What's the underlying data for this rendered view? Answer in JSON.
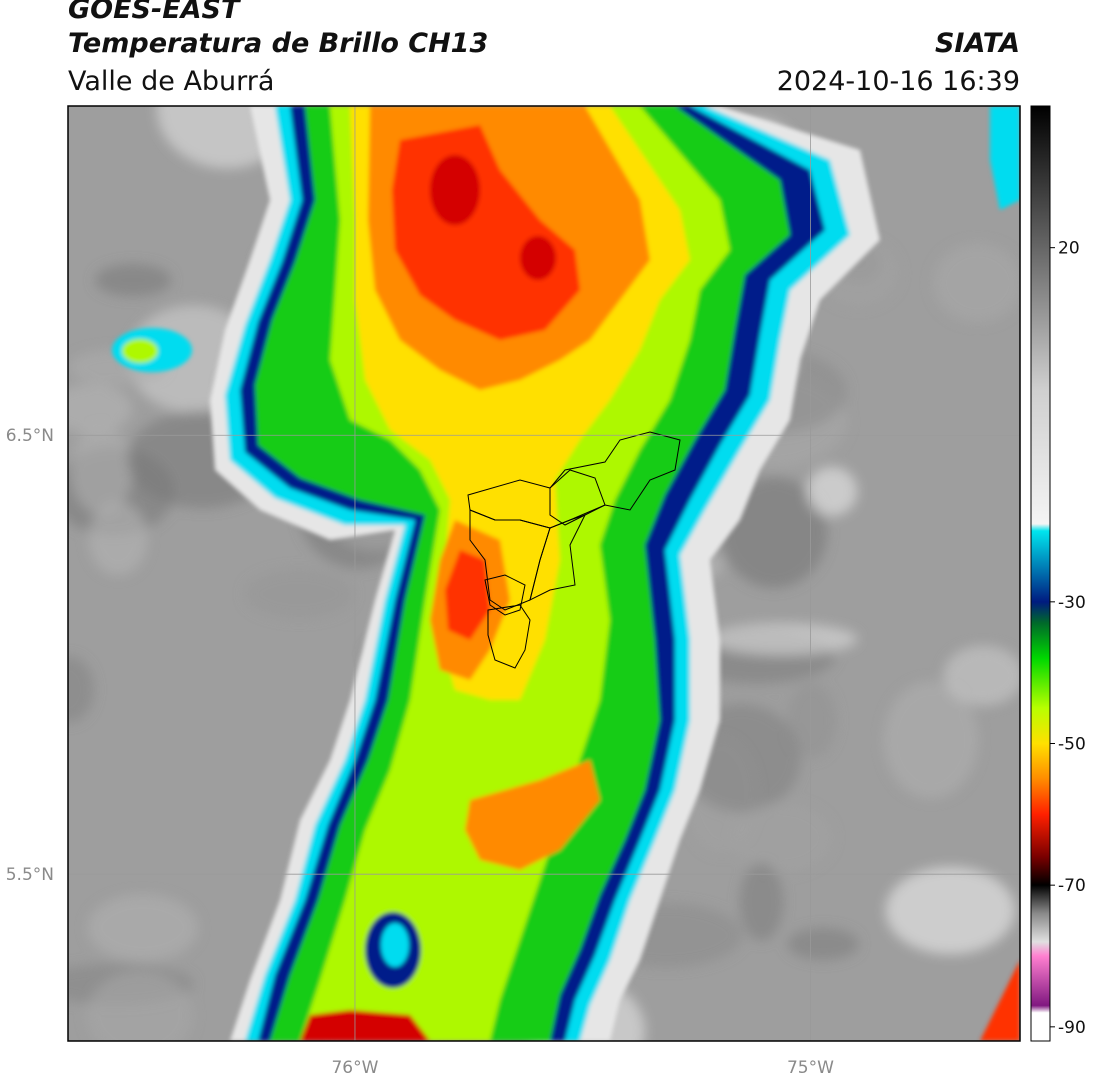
{
  "header": {
    "satellite": "GOES-EAST",
    "product": "Temperatura de Brillo CH13",
    "region": "Valle de Aburrá",
    "agency": "SIATA",
    "datetime": "2024-10-16 16:39"
  },
  "map": {
    "lat_labels": [
      "6.5°N",
      "5.5°N"
    ],
    "lon_labels": [
      "76°W",
      "75°W"
    ],
    "lat_values": [
      6.5,
      5.5
    ],
    "lon_values": [
      -76.0,
      -75.0
    ],
    "extent": {
      "lon_min": -76.63,
      "lon_max": -74.54,
      "lat_min": 5.12,
      "lat_max": 7.25
    },
    "grid_color": "#9a9a9a"
  },
  "colorbar": {
    "ticks": [
      20,
      -30,
      -50,
      -70,
      -90
    ],
    "min": -92,
    "max": 40,
    "stops": [
      {
        "v": 40,
        "c": "#000000"
      },
      {
        "v": 20,
        "c": "#666666"
      },
      {
        "v": 0,
        "c": "#cfcfcf"
      },
      {
        "v": -19,
        "c": "#f4f4f4"
      },
      {
        "v": -20,
        "c": "#00e5ee"
      },
      {
        "v": -30,
        "c": "#001b80"
      },
      {
        "v": -33,
        "c": "#006a2a"
      },
      {
        "v": -38,
        "c": "#00d800"
      },
      {
        "v": -45,
        "c": "#b8ff00"
      },
      {
        "v": -50,
        "c": "#ffe000"
      },
      {
        "v": -55,
        "c": "#ff8c00"
      },
      {
        "v": -60,
        "c": "#ff2000"
      },
      {
        "v": -66,
        "c": "#7a0000"
      },
      {
        "v": -70,
        "c": "#000000"
      },
      {
        "v": -74,
        "c": "#8a8a8a"
      },
      {
        "v": -78,
        "c": "#e0e0e0"
      },
      {
        "v": -80,
        "c": "#ff80d0"
      },
      {
        "v": -87,
        "c": "#801880"
      },
      {
        "v": -88,
        "c": "#ffffff"
      }
    ]
  },
  "colors": {
    "clear": "#9e9e9e",
    "bright": "#e6e6e6",
    "cyan": "#00dcf0",
    "navy": "#001f8a",
    "green": "#12cc12",
    "lime": "#aef800",
    "yellow": "#ffe000",
    "orange": "#ff8a00",
    "red": "#ff3000",
    "darkred": "#d40000",
    "outline": "#000000"
  }
}
